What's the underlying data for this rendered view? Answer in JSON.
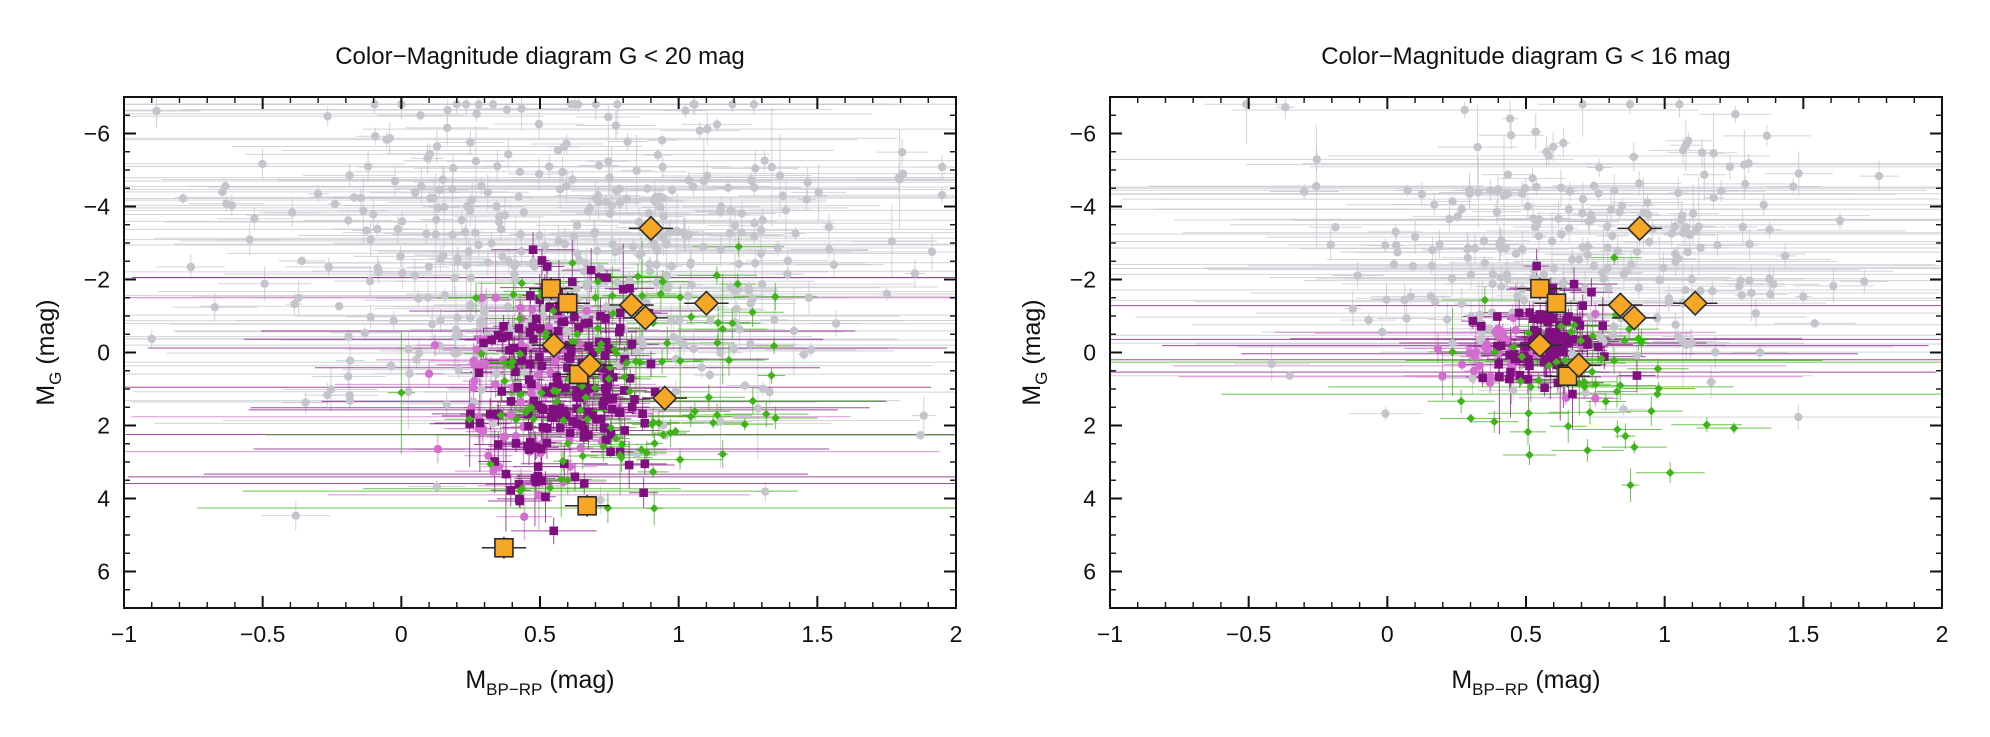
{
  "colors": {
    "faint": "#c3c5cb",
    "magenta": "#d36ed0",
    "purple": "#7f0f7e",
    "green": "#3fb418",
    "orange": "#f6a726",
    "outline": "#2b2b2b"
  },
  "chart_data": [
    {
      "type": "scatter",
      "title": "Color−Magnitude diagram G < 20 mag",
      "xlabel_main": "M",
      "xlabel_sub": "BP−RP",
      "xlabel_unit": " (mag)",
      "ylabel_main": "M",
      "ylabel_sub": "G",
      "ylabel_unit": " (mag)",
      "xlim": [
        -1,
        2
      ],
      "ylim": [
        7,
        -7
      ],
      "xticks": [
        -1,
        -0.5,
        0,
        0.5,
        1,
        1.5,
        2
      ],
      "xtick_labels": [
        "−1",
        "−0.5",
        "0",
        "0.5",
        "1",
        "1.5",
        "2"
      ],
      "yticks": [
        -6,
        -4,
        -2,
        0,
        2,
        4,
        6
      ],
      "ytick_labels": [
        "−6",
        "−4",
        "−2",
        "0",
        "2",
        "4",
        "6"
      ],
      "series": [
        {
          "name": "faint",
          "marker": "circle",
          "color": "#c3c5cb",
          "cloud": {
            "count": 420,
            "seed": 11,
            "x": [
              -0.9,
              1.95
            ],
            "y": [
              -6.8,
              6.8
            ],
            "center": [
              0.6,
              -2.5
            ],
            "spread": [
              0.55,
              2.4
            ]
          }
        },
        {
          "name": "magenta",
          "marker": "circle",
          "color": "#d36ed0",
          "cloud": {
            "count": 90,
            "seed": 23,
            "x": [
              0.1,
              0.8
            ],
            "y": [
              -1.5,
              4.5
            ],
            "center": [
              0.45,
              0.9
            ],
            "spread": [
              0.15,
              1.2
            ]
          }
        },
        {
          "name": "purple",
          "marker": "square",
          "color": "#7f0f7e",
          "cloud": {
            "count": 190,
            "seed": 37,
            "x": [
              0.15,
              1.6
            ],
            "y": [
              -3.9,
              6.4
            ],
            "center": [
              0.58,
              1.0
            ],
            "spread": [
              0.14,
              1.6
            ]
          }
        },
        {
          "name": "green",
          "marker": "diamond",
          "color": "#3fb418",
          "cloud": {
            "count": 120,
            "seed": 51,
            "x": [
              0,
              1.9
            ],
            "y": [
              -3.3,
              6.3
            ],
            "center": [
              0.75,
              0.6
            ],
            "spread": [
              0.3,
              1.7
            ]
          }
        },
        {
          "name": "highlight-squares",
          "marker": "square",
          "color": "#f6a726",
          "points": [
            [
              0.54,
              -1.75
            ],
            [
              0.6,
              -1.35
            ],
            [
              0.64,
              0.6
            ],
            [
              0.67,
              4.2
            ],
            [
              0.37,
              5.35
            ]
          ]
        },
        {
          "name": "highlight-diamonds",
          "marker": "diamond",
          "color": "#f6a726",
          "points": [
            [
              0.9,
              -3.4
            ],
            [
              1.1,
              -1.35
            ],
            [
              0.83,
              -1.3
            ],
            [
              0.88,
              -0.95
            ],
            [
              0.55,
              -0.2
            ],
            [
              0.68,
              0.35
            ],
            [
              0.95,
              1.25
            ]
          ]
        }
      ]
    },
    {
      "type": "scatter",
      "title": "Color−Magnitude diagram G < 16 mag",
      "xlabel_main": "M",
      "xlabel_sub": "BP−RP",
      "xlabel_unit": " (mag)",
      "ylabel_main": "M",
      "ylabel_sub": "G",
      "ylabel_unit": " (mag)",
      "xlim": [
        -1,
        2
      ],
      "ylim": [
        7,
        -7
      ],
      "xticks": [
        -1,
        -0.5,
        0,
        0.5,
        1,
        1.5,
        2
      ],
      "xtick_labels": [
        "−1",
        "−0.5",
        "0",
        "0.5",
        "1",
        "1.5",
        "2"
      ],
      "yticks": [
        -6,
        -4,
        -2,
        0,
        2,
        4,
        6
      ],
      "ytick_labels": [
        "−6",
        "−4",
        "−2",
        "0",
        "2",
        "4",
        "6"
      ],
      "series": [
        {
          "name": "faint",
          "marker": "circle",
          "color": "#c3c5cb",
          "cloud": {
            "count": 260,
            "seed": 71,
            "x": [
              -0.85,
              1.9
            ],
            "y": [
              -6.8,
              3.9
            ],
            "center": [
              0.7,
              -2.8
            ],
            "spread": [
              0.5,
              1.9
            ]
          }
        },
        {
          "name": "magenta",
          "marker": "circle",
          "color": "#d36ed0",
          "cloud": {
            "count": 40,
            "seed": 83,
            "x": [
              0.15,
              0.75
            ],
            "y": [
              -1.3,
              1.3
            ],
            "center": [
              0.45,
              0.0
            ],
            "spread": [
              0.13,
              0.5
            ]
          }
        },
        {
          "name": "purple",
          "marker": "square",
          "color": "#7f0f7e",
          "cloud": {
            "count": 95,
            "seed": 97,
            "x": [
              0.25,
              0.9
            ],
            "y": [
              -2.4,
              1.4
            ],
            "center": [
              0.55,
              -0.3
            ],
            "spread": [
              0.12,
              0.7
            ]
          }
        },
        {
          "name": "green",
          "marker": "diamond",
          "color": "#3fb418",
          "cloud": {
            "count": 55,
            "seed": 113,
            "x": [
              0.2,
              1.25
            ],
            "y": [
              -2.6,
              4.8
            ],
            "center": [
              0.7,
              0.5
            ],
            "spread": [
              0.2,
              1.3
            ]
          }
        },
        {
          "name": "highlight-squares",
          "marker": "square",
          "color": "#f6a726",
          "points": [
            [
              0.55,
              -1.75
            ],
            [
              0.61,
              -1.35
            ],
            [
              0.65,
              0.65
            ]
          ]
        },
        {
          "name": "highlight-diamonds",
          "marker": "diamond",
          "color": "#f6a726",
          "points": [
            [
              0.91,
              -3.4
            ],
            [
              1.11,
              -1.35
            ],
            [
              0.84,
              -1.3
            ],
            [
              0.89,
              -0.95
            ],
            [
              0.55,
              -0.2
            ],
            [
              0.69,
              0.35
            ]
          ]
        }
      ]
    }
  ]
}
